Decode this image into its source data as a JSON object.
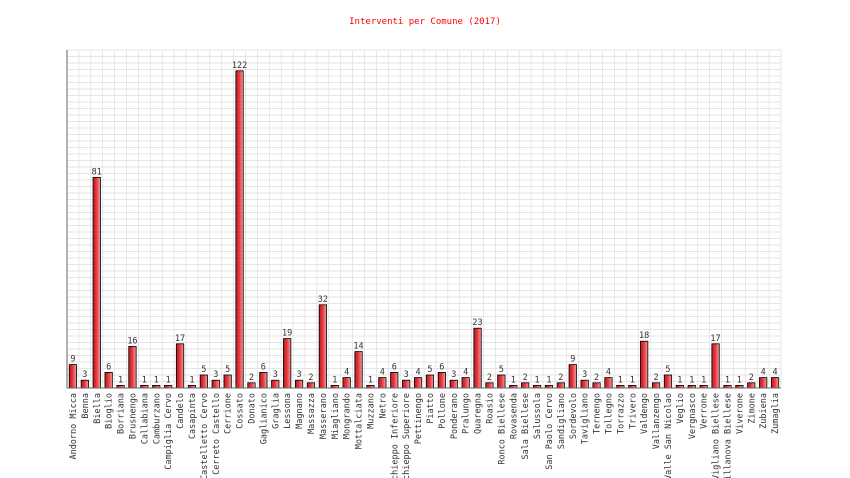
{
  "chart_data": {
    "type": "bar",
    "title": "Interventi per Comune (2017)",
    "xlabel": "",
    "ylabel": "",
    "ylim": [
      0,
      130
    ],
    "grid": true,
    "legend": "none",
    "bar_color": "#e8343a",
    "bar_border_color": "#000000",
    "title_color": "#ff0000",
    "categories": [
      "Andorno Micca",
      "Benna",
      "Biella",
      "Bioglio",
      "Borriana",
      "Brusnengo",
      "Callabiana",
      "Camburzano",
      "Campiglia Cervo",
      "Candelo",
      "Casapinta",
      "Castelletto Cervo",
      "Cerreto Castello",
      "Cerrione",
      "Cossato",
      "Donato",
      "Gaglianico",
      "Graglia",
      "Lessona",
      "Magnano",
      "Massazza",
      "Masserano",
      "Miagliano",
      "Mongrando",
      "Mottalciata",
      "Muzzano",
      "Netro",
      "Occhieppo Inferiore",
      "Occhieppo Superiore",
      "Pettinengo",
      "Piatto",
      "Pollone",
      "Ponderano",
      "Pralungo",
      "Quaregna",
      "Roasio",
      "Ronco Biellese",
      "Rovasenda",
      "Sala Biellese",
      "Salussola",
      "San Paolo Cervo",
      "Sandigliano",
      "Sordevolo",
      "Tavigliano",
      "Ternengo",
      "Tollegno",
      "Torrazzo",
      "Trivero",
      "Valdengo",
      "Vallanzengo",
      "Valle San Nicolao",
      "Veglio",
      "Vergnasco",
      "Verrone",
      "Vigliano Biellese",
      "Villanova Biellese",
      "Viverone",
      "Zimone",
      "Zubiena",
      "Zumaglia"
    ],
    "values": [
      9,
      3,
      81,
      6,
      1,
      16,
      1,
      1,
      1,
      17,
      1,
      5,
      3,
      5,
      122,
      2,
      6,
      3,
      19,
      3,
      2,
      32,
      1,
      4,
      14,
      1,
      4,
      6,
      3,
      4,
      5,
      6,
      3,
      4,
      23,
      2,
      5,
      1,
      2,
      1,
      1,
      2,
      9,
      3,
      2,
      4,
      1,
      1,
      18,
      2,
      5,
      1,
      1,
      1,
      17,
      1,
      1,
      2,
      4,
      4
    ]
  }
}
